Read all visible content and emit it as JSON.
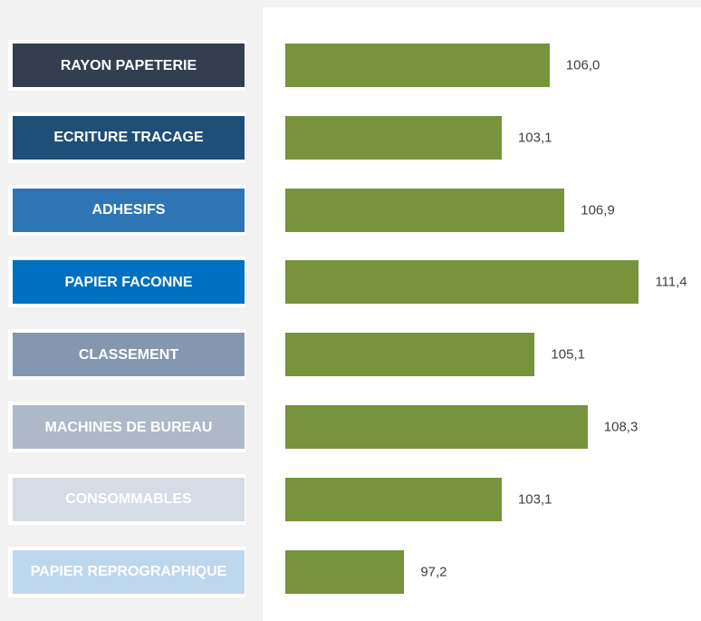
{
  "chart_data": {
    "type": "bar",
    "orientation": "horizontal",
    "categories": [
      "RAYON PAPETERIE",
      "ECRITURE TRACAGE",
      "ADHESIFS",
      "PAPIER FACONNE",
      "CLASSEMENT",
      "MACHINES DE BUREAU",
      "CONSOMMABLES",
      "PAPIER REPROGRAPHIQUE"
    ],
    "category_colors": [
      "#333f50",
      "#1f4e79",
      "#2e75b6",
      "#0070c0",
      "#8497b0",
      "#adb9ca",
      "#d6dce5",
      "#bdd7ee"
    ],
    "values": [
      106.0,
      103.1,
      106.9,
      111.4,
      105.1,
      108.3,
      103.1,
      97.2
    ],
    "value_labels": [
      "106,0",
      "103,1",
      "106,9",
      "111,4",
      "105,1",
      "108,3",
      "103,1",
      "97,2"
    ],
    "color": "#77933c",
    "xlim": [
      90,
      115
    ]
  }
}
